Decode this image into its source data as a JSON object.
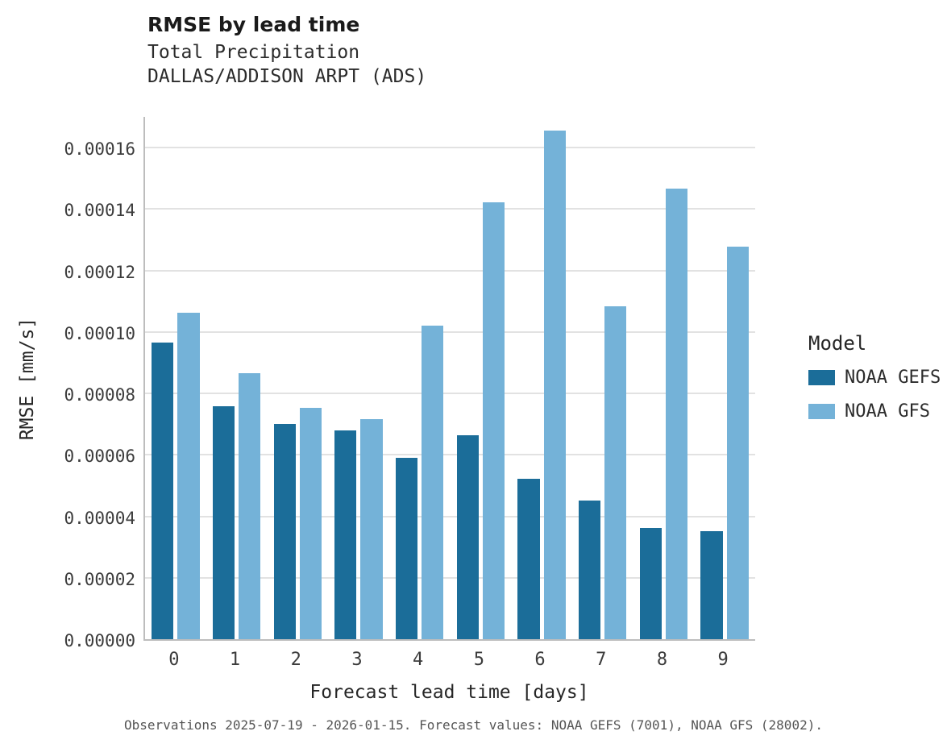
{
  "title": "RMSE by lead time",
  "subtitle1": "Total Precipitation",
  "subtitle2": "DALLAS/ADDISON ARPT (ADS)",
  "xlabel": "Forecast lead time [days]",
  "ylabel": "RMSE [mm/s]",
  "caption": "Observations 2025-07-19 - 2026-01-15. Forecast values: NOAA GEFS (7001), NOAA GFS (28002).",
  "legend": {
    "title": "Model",
    "entries": [
      {
        "label": "NOAA GEFS",
        "color": "#1b6d99"
      },
      {
        "label": "NOAA GFS",
        "color": "#74b2d8"
      }
    ]
  },
  "chart_data": {
    "type": "bar",
    "title": "RMSE by lead time",
    "subtitle": "Total Precipitation — DALLAS/ADDISON ARPT (ADS)",
    "xlabel": "Forecast lead time [days]",
    "ylabel": "RMSE [mm/s]",
    "categories": [
      "0",
      "1",
      "2",
      "3",
      "4",
      "5",
      "6",
      "7",
      "8",
      "9"
    ],
    "series": [
      {
        "name": "NOAA GEFS",
        "color": "#1b6d99",
        "values": [
          9.65e-05,
          7.57e-05,
          7e-05,
          6.79e-05,
          5.9e-05,
          6.63e-05,
          5.23e-05,
          4.52e-05,
          3.63e-05,
          3.52e-05
        ]
      },
      {
        "name": "NOAA GFS",
        "color": "#74b2d8",
        "values": [
          0.0001062,
          8.66e-05,
          7.54e-05,
          7.15e-05,
          0.000102,
          0.0001421,
          0.0001655,
          0.0001084,
          0.0001466,
          0.0001278
        ]
      }
    ],
    "ylim": [
      0,
      0.00017
    ],
    "yticks": [
      0,
      2e-05,
      4e-05,
      6e-05,
      8e-05,
      0.0001,
      0.00012,
      0.00014,
      0.00016
    ],
    "ytick_labels": [
      "0.00000",
      "0.00002",
      "0.00004",
      "0.00006",
      "0.00008",
      "0.00010",
      "0.00012",
      "0.00014",
      "0.00016"
    ],
    "grid": "horizontal",
    "legend_position": "right",
    "legend_title": "Model"
  }
}
